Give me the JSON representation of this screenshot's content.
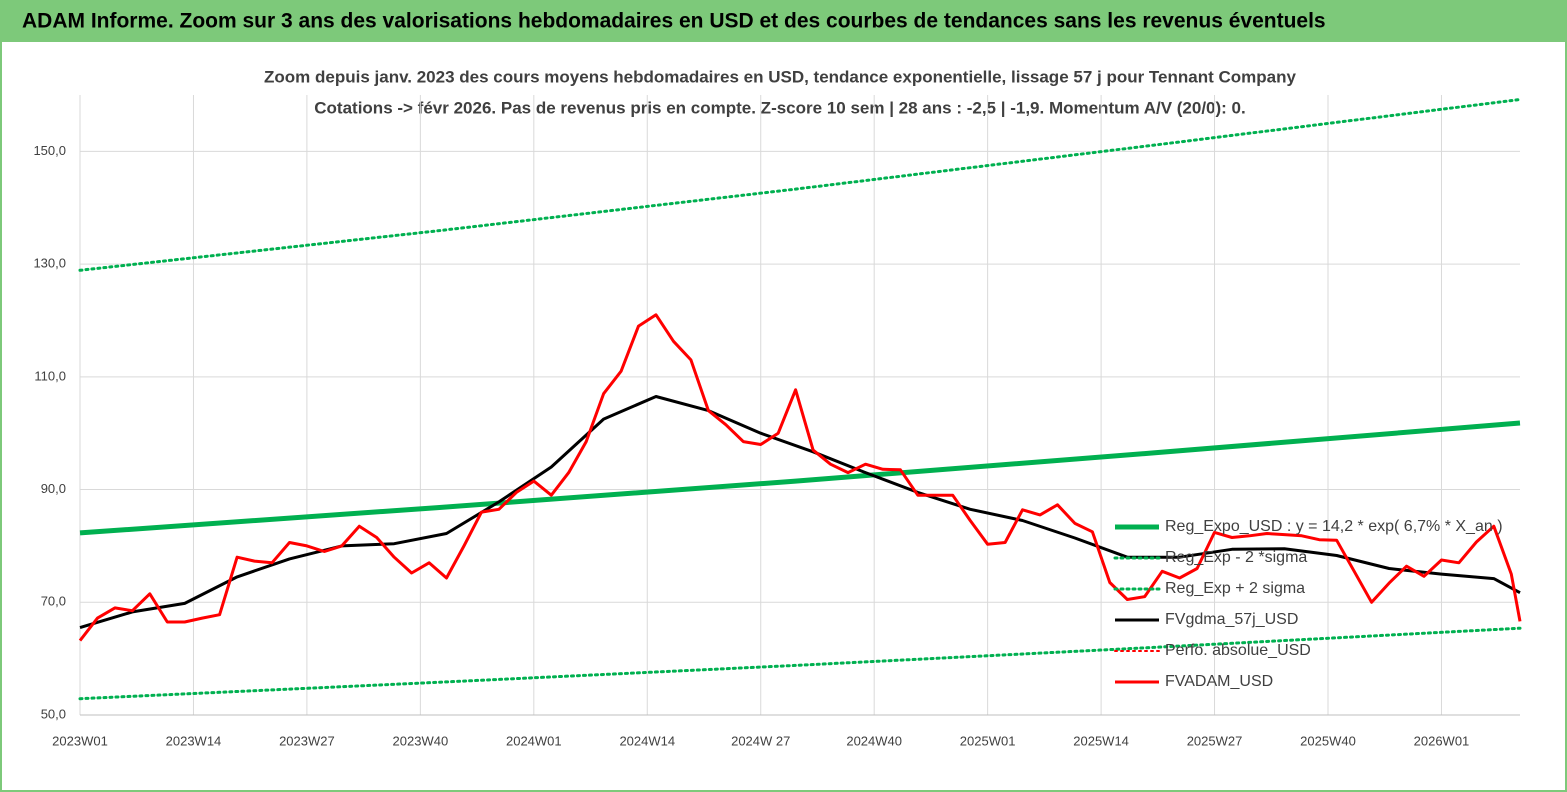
{
  "header": {
    "title": "ADAM Informe. Zoom sur 3 ans des valorisations hebdomadaires en USD et des courbes de tendances sans les revenus éventuels"
  },
  "chart_data": {
    "type": "line",
    "title": "Zoom depuis janv. 2023 des cours moyens hebdomadaires en USD, tendance exponentielle, lissage 57 j pour Tennant Company",
    "subtitle": "Cotations -> févr 2026.  Pas de revenus pris en compte. Z-score 10 sem | 28 ans : -2,5 | -1,9. Momentum A/V (20/0): 0.",
    "xlim": [
      0,
      165
    ],
    "xticks": [
      {
        "value": 0,
        "label": "2023W01"
      },
      {
        "value": 13,
        "label": "2023W14"
      },
      {
        "value": 26,
        "label": "2023W27"
      },
      {
        "value": 39,
        "label": "2023W40"
      },
      {
        "value": 52,
        "label": "2024W01"
      },
      {
        "value": 65,
        "label": "2024W14"
      },
      {
        "value": 78,
        "label": "2024W 27"
      },
      {
        "value": 91,
        "label": "2024W40"
      },
      {
        "value": 104,
        "label": "2025W01"
      },
      {
        "value": 117,
        "label": "2025W14"
      },
      {
        "value": 130,
        "label": "2025W27"
      },
      {
        "value": 143,
        "label": "2025W40"
      },
      {
        "value": 156,
        "label": "2026W01"
      }
    ],
    "ylim": [
      50,
      160
    ],
    "yticks": [
      {
        "value": 50,
        "label": "50,0"
      },
      {
        "value": 70,
        "label": "70,0"
      },
      {
        "value": 90,
        "label": "90,0"
      },
      {
        "value": 110,
        "label": "110,0"
      },
      {
        "value": 130,
        "label": "130,0"
      },
      {
        "value": 150,
        "label": "150,0"
      }
    ],
    "grid": true,
    "legend": "right",
    "series": [
      {
        "name": "Reg_Expo_USD : y = 14,2 * exp( 6,7% *  X_an )",
        "color": "#00b050",
        "width": 5,
        "dotted": false,
        "x": [
          0,
          41,
          82,
          123,
          165
        ],
        "values": [
          82.3,
          86.8,
          91.5,
          96.5,
          101.8
        ]
      },
      {
        "name": "Reg_Exp - 2 *sigma",
        "color": "#00b050",
        "width": 3,
        "dotted": true,
        "x": [
          0,
          41,
          82,
          123,
          165
        ],
        "values": [
          52.9,
          55.8,
          58.8,
          62.0,
          65.4
        ]
      },
      {
        "name": "Reg_Exp + 2 sigma",
        "color": "#00b050",
        "width": 3,
        "dotted": true,
        "x": [
          0,
          41,
          82,
          123,
          165
        ],
        "values": [
          128.9,
          135.9,
          143.3,
          151.1,
          159.2
        ]
      },
      {
        "name": "FVgdma_57j_USD",
        "color": "#000000",
        "width": 3,
        "dotted": false,
        "x": [
          0,
          6,
          12,
          18,
          24,
          30,
          36,
          42,
          48,
          54,
          60,
          66,
          72,
          78,
          84,
          90,
          96,
          102,
          108,
          114,
          120,
          126,
          132,
          138,
          144,
          150,
          156,
          162,
          165
        ],
        "values": [
          65.5,
          68.3,
          69.8,
          74.5,
          77.7,
          80,
          80.4,
          82.2,
          87.8,
          94,
          102.5,
          106.5,
          104,
          100,
          96.7,
          93,
          89.5,
          86.5,
          84.5,
          81.4,
          78,
          78,
          79.4,
          79.5,
          78.3,
          76,
          75,
          74.2,
          71.7
        ]
      },
      {
        "name": "Perfo. absolue_USD",
        "color": "#ff0000",
        "width": 2,
        "dotted": true,
        "x": [],
        "values": []
      },
      {
        "name": "FVADAM_USD",
        "color": "#ff0000",
        "width": 3,
        "dotted": false,
        "x": [
          0,
          2,
          4,
          6,
          8,
          10,
          12,
          14,
          16,
          18,
          20,
          22,
          24,
          26,
          28,
          30,
          32,
          34,
          36,
          38,
          40,
          42,
          44,
          46,
          48,
          50,
          52,
          54,
          56,
          58,
          60,
          62,
          64,
          66,
          68,
          70,
          72,
          74,
          76,
          78,
          80,
          82,
          84,
          86,
          88,
          90,
          92,
          94,
          96,
          98,
          100,
          102,
          104,
          106,
          108,
          110,
          112,
          114,
          116,
          118,
          120,
          122,
          124,
          126,
          128,
          130,
          132,
          134,
          136,
          138,
          140,
          142,
          144,
          146,
          148,
          150,
          152,
          154,
          156,
          158,
          160,
          162,
          164,
          165
        ],
        "values": [
          63.2,
          67.2,
          69,
          68.5,
          71.5,
          66.5,
          66.5,
          67.2,
          67.8,
          78,
          77.3,
          77,
          80.6,
          80,
          79,
          80,
          83.5,
          81.5,
          78,
          75.2,
          77,
          74.3,
          80,
          86,
          86.5,
          89.5,
          91.5,
          89,
          93,
          98.5,
          107,
          111,
          119,
          121,
          116.3,
          113,
          104,
          101.5,
          98.5,
          98,
          100,
          107.7,
          97,
          94.5,
          93,
          94.5,
          93.6,
          93.5,
          89,
          89,
          89,
          84.5,
          80.3,
          80.6,
          86.4,
          85.5,
          87.3,
          84,
          82.5,
          73.5,
          70.5,
          71,
          75.5,
          74.3,
          76,
          82.4,
          81.5,
          81.8,
          82.2,
          82,
          81.8,
          81.1,
          81,
          75.5,
          70,
          73.4,
          76.4,
          74.6,
          77.5,
          77,
          80.7,
          83.5,
          75,
          66.6
        ]
      }
    ]
  }
}
